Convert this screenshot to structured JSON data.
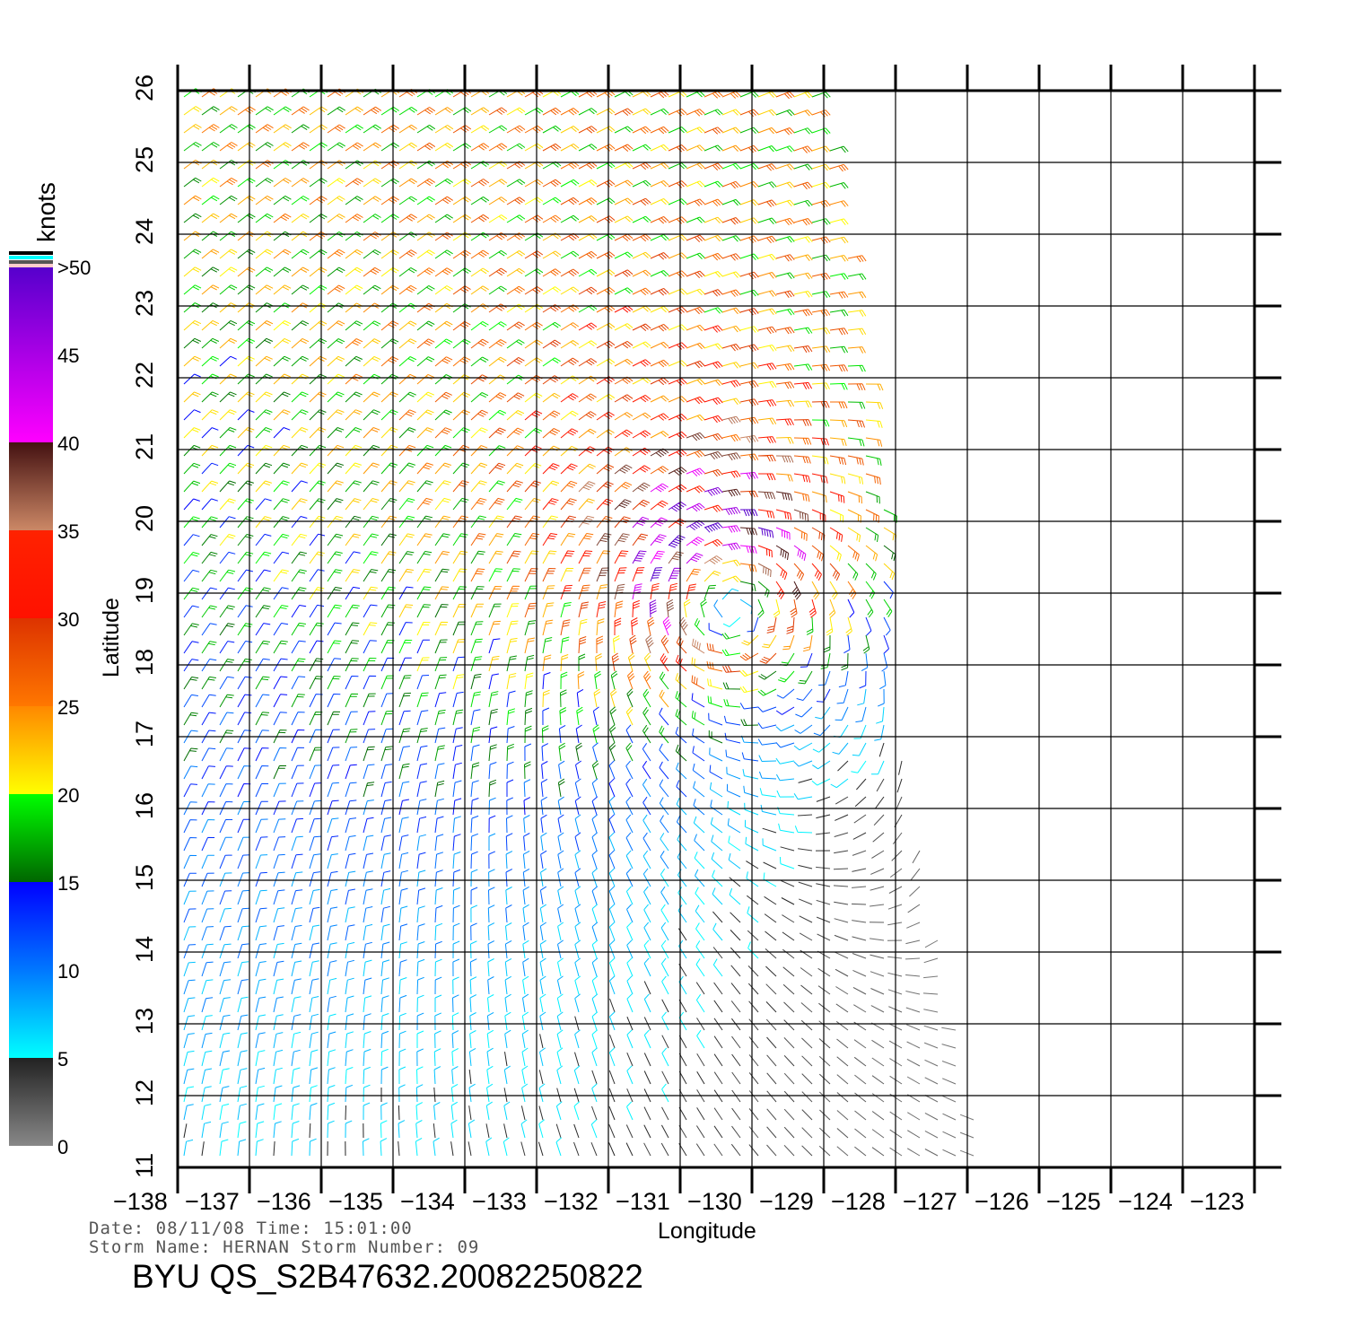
{
  "chart_data": {
    "type": "wind-barb-map",
    "xlabel": "Longitude",
    "ylabel": "Latitude",
    "xlim": [
      -138,
      -123
    ],
    "ylim": [
      11,
      26
    ],
    "x_ticks": [
      "−138",
      "−137",
      "−136",
      "−135",
      "−134",
      "−133",
      "−132",
      "−131",
      "−130",
      "−129",
      "−128",
      "−127",
      "−126",
      "−125",
      "−124",
      "−123"
    ],
    "y_ticks": [
      "11",
      "12",
      "13",
      "14",
      "15",
      "16",
      "17",
      "18",
      "19",
      "20",
      "21",
      "22",
      "23",
      "24",
      "25",
      "26"
    ],
    "grid": true,
    "colorbar": {
      "title": "knots",
      "labels": [
        "0",
        "5",
        "10",
        "15",
        "20",
        "25",
        "30",
        "35",
        "40",
        "45",
        ">50"
      ],
      "range": [
        0,
        50
      ]
    },
    "storm_center": {
      "lon": -130.4,
      "lat": 19.0
    }
  },
  "footer": {
    "date_line": "Date: 08/11/08   Time: 15:01:00",
    "storm_line": "Storm  Name: HERNAN   Storm  Number: 09",
    "product": "BYU  QS_S2B47632.20082250822"
  }
}
